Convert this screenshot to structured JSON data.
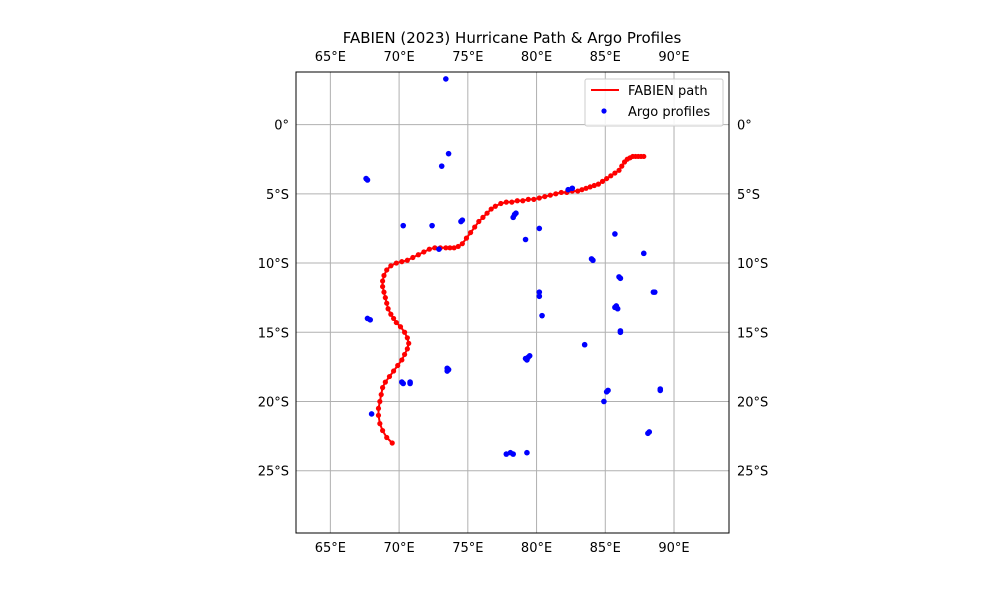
{
  "chart_data": {
    "type": "scatter",
    "title": "FABIEN (2023) Hurricane Path & Argo Profiles",
    "xlabel": "",
    "ylabel": "",
    "xlim": [
      62.5,
      94
    ],
    "ylim": [
      -29.5,
      3.8
    ],
    "grid": true,
    "legend_position": "top-right",
    "x_ticks": [
      65,
      70,
      75,
      80,
      85,
      90
    ],
    "x_tick_labels": [
      "65°E",
      "70°E",
      "75°E",
      "80°E",
      "85°E",
      "90°E"
    ],
    "y_ticks": [
      0,
      -5,
      -10,
      -15,
      -20,
      -25
    ],
    "y_tick_labels": [
      "0°",
      "5°S",
      "10°S",
      "15°S",
      "20°S",
      "25°S"
    ],
    "series": [
      {
        "name": "FABIEN path",
        "kind": "line",
        "color": "#ff0000",
        "x": [
          87.8,
          87.6,
          87.4,
          87.2,
          87.0,
          86.8,
          86.6,
          86.4,
          86.2,
          86.0,
          85.7,
          85.4,
          85.1,
          84.8,
          84.5,
          84.2,
          83.9,
          83.6,
          83.3,
          83.0,
          82.6,
          82.2,
          81.8,
          81.4,
          81.0,
          80.6,
          80.2,
          79.8,
          79.4,
          79.0,
          78.6,
          78.2,
          77.8,
          77.4,
          77.0,
          76.7,
          76.4,
          76.1,
          75.8,
          75.5,
          75.2,
          74.9,
          74.6,
          74.3,
          74.0,
          73.7,
          73.4,
          73.0,
          72.6,
          72.2,
          71.8,
          71.4,
          71.0,
          70.6,
          70.2,
          69.8,
          69.4,
          69.1,
          68.9,
          68.8,
          68.8,
          68.9,
          69.0,
          69.1,
          69.2,
          69.4,
          69.6,
          69.8,
          70.1,
          70.4,
          70.6,
          70.7,
          70.6,
          70.4,
          70.2,
          69.9,
          69.6,
          69.3,
          69.0,
          68.8,
          68.7,
          68.6,
          68.5,
          68.5,
          68.6,
          68.8,
          69.1,
          69.5
        ],
        "y": [
          -2.3,
          -2.3,
          -2.3,
          -2.3,
          -2.3,
          -2.4,
          -2.5,
          -2.7,
          -3.0,
          -3.3,
          -3.5,
          -3.7,
          -3.9,
          -4.1,
          -4.3,
          -4.4,
          -4.5,
          -4.6,
          -4.7,
          -4.8,
          -4.8,
          -4.9,
          -4.9,
          -5.0,
          -5.1,
          -5.2,
          -5.3,
          -5.4,
          -5.4,
          -5.5,
          -5.5,
          -5.6,
          -5.6,
          -5.7,
          -5.9,
          -6.1,
          -6.4,
          -6.7,
          -7.0,
          -7.4,
          -7.8,
          -8.2,
          -8.6,
          -8.8,
          -8.9,
          -8.9,
          -8.9,
          -8.9,
          -8.9,
          -9.0,
          -9.2,
          -9.4,
          -9.6,
          -9.8,
          -9.9,
          -10.0,
          -10.2,
          -10.5,
          -10.9,
          -11.3,
          -11.7,
          -12.1,
          -12.5,
          -12.9,
          -13.3,
          -13.7,
          -14.0,
          -14.3,
          -14.6,
          -15.0,
          -15.4,
          -15.8,
          -16.2,
          -16.6,
          -17.0,
          -17.4,
          -17.8,
          -18.2,
          -18.6,
          -19.0,
          -19.5,
          -20.0,
          -20.5,
          -21.0,
          -21.6,
          -22.1,
          -22.6,
          -23.0
        ]
      },
      {
        "name": "Argo profiles",
        "kind": "scatter",
        "color": "#0000ff",
        "x": [
          67.6,
          67.7,
          67.7,
          67.9,
          68.0,
          70.3,
          70.2,
          70.3,
          70.8,
          70.8,
          72.9,
          73.1,
          73.6,
          73.5,
          73.6,
          73.5,
          74.6,
          74.5,
          78.3,
          78.4,
          78.5,
          79.2,
          79.3,
          79.4,
          79.5,
          79.2,
          80.2,
          80.2,
          80.2,
          80.4,
          82.3,
          82.6,
          84.0,
          84.1,
          83.5,
          85.7,
          85.8,
          85.7,
          85.9,
          86.1,
          86.1,
          86.0,
          86.1,
          85.2,
          85.1,
          84.9,
          87.8,
          88.5,
          88.6,
          88.1,
          88.2,
          89.0,
          89.0,
          77.8,
          78.1,
          78.3,
          79.3,
          72.4,
          73.4
        ],
        "y": [
          -3.9,
          -4.0,
          -14.0,
          -14.1,
          -20.9,
          -7.3,
          -18.6,
          -18.7,
          -18.6,
          -18.7,
          -9.0,
          -3.0,
          -2.1,
          -17.6,
          -17.7,
          -17.8,
          -6.9,
          -7.0,
          -6.7,
          -6.5,
          -6.4,
          -8.3,
          -17.0,
          -16.8,
          -16.7,
          -16.9,
          -7.5,
          -12.1,
          -12.4,
          -13.8,
          -4.7,
          -4.6,
          -9.7,
          -9.8,
          -15.9,
          -7.9,
          -13.1,
          -13.2,
          -13.3,
          -14.9,
          -15.0,
          -11.0,
          -11.1,
          -19.2,
          -19.3,
          -20.0,
          -9.3,
          -12.1,
          -12.1,
          -22.3,
          -22.2,
          -19.2,
          -19.1,
          -23.8,
          -23.7,
          -23.8,
          -23.7,
          -7.3,
          3.3
        ]
      }
    ]
  }
}
